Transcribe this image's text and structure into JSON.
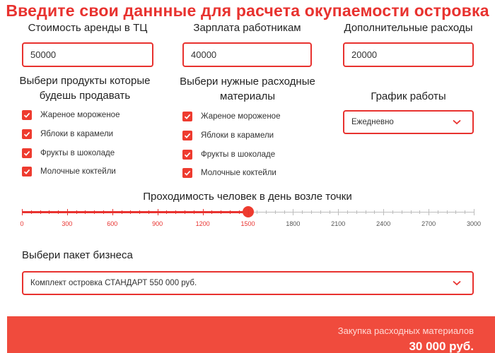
{
  "title": "Введите свои даннные для расчета окупаемости островка",
  "inputs": {
    "rent": {
      "label": "Стоимость аренды в ТЦ",
      "value": "50000"
    },
    "salary": {
      "label": "Зарплата работникам",
      "value": "40000"
    },
    "extra": {
      "label": "Дополнительные расходы",
      "value": "20000"
    }
  },
  "products": {
    "title_line1": "Выбери продукты которые",
    "title_line2": "будешь продавать",
    "items": [
      "Жареное мороженое",
      "Яблоки в карамели",
      "Фрукты в шоколаде",
      "Молочные коктейли"
    ]
  },
  "materials": {
    "title_line1": "Выбери  нужные расходные",
    "title_line2": "материалы",
    "items": [
      "Жареное мороженое",
      "Яблоки в карамели",
      "Фрукты в шоколаде",
      "Молочные коктейли"
    ]
  },
  "schedule": {
    "label": "График работы",
    "selected": "Ежедневно"
  },
  "traffic": {
    "label": "Проходимость человек в день возле точки",
    "value": 1500,
    "min": 0,
    "max": 3000,
    "ticks": [
      "0",
      "300",
      "600",
      "900",
      "1200",
      "1500",
      "1800",
      "2100",
      "2400",
      "2700",
      "3000"
    ]
  },
  "package": {
    "label": "Выбери пакет бизнеса",
    "selected": "Комплект островка СТАНДАРТ 550 000 руб."
  },
  "footer": {
    "caption": "Закупка расходных материалов",
    "value": "30 000 руб."
  },
  "colors": {
    "accent": "#e8322f",
    "footer_bg": "#f04b3d",
    "tick_active": "#e8322f",
    "tick_inactive": "#555555"
  },
  "icons": {
    "checkbox": "checkmark-icon",
    "dropdown": "chevron-down-icon"
  }
}
